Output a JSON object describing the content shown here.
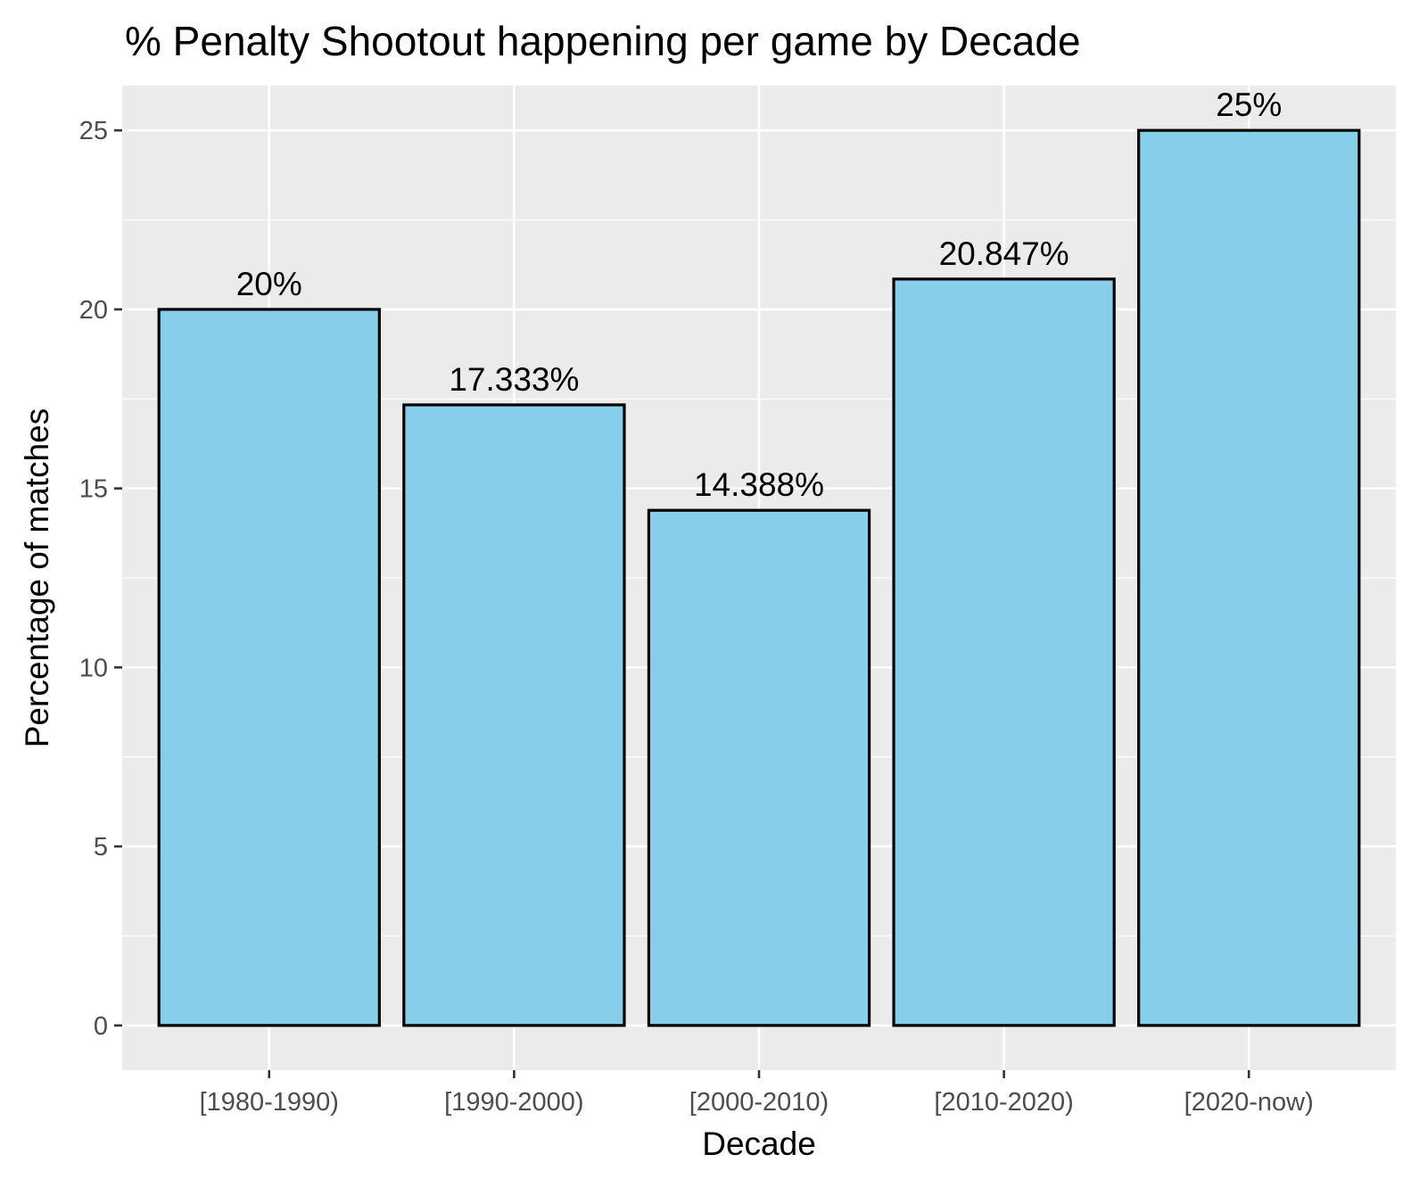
{
  "chart_data": {
    "type": "bar",
    "title": "% Penalty Shootout happening per game by Decade",
    "xlabel": "Decade",
    "ylabel": "Percentage of matches",
    "categories": [
      "[1980-1990)",
      "[1990-2000)",
      "[2000-2010)",
      "[2010-2020)",
      "[2020-now)"
    ],
    "values": [
      20,
      17.333,
      14.388,
      20.847,
      25
    ],
    "value_labels": [
      "20%",
      "17.333%",
      "14.388%",
      "20.847%",
      "25%"
    ],
    "ylim": [
      -1.25,
      26.25
    ],
    "yticks": [
      0,
      5,
      10,
      15,
      20,
      25
    ],
    "ytick_labels": [
      "0",
      "5",
      "10",
      "15",
      "20",
      "25"
    ],
    "grid": true,
    "legend": "none",
    "colors": {
      "bar_fill": "#87CEEB",
      "bar_outline": "#000000",
      "panel_background": "#EBEBEB",
      "grid": "#FFFFFF"
    }
  }
}
